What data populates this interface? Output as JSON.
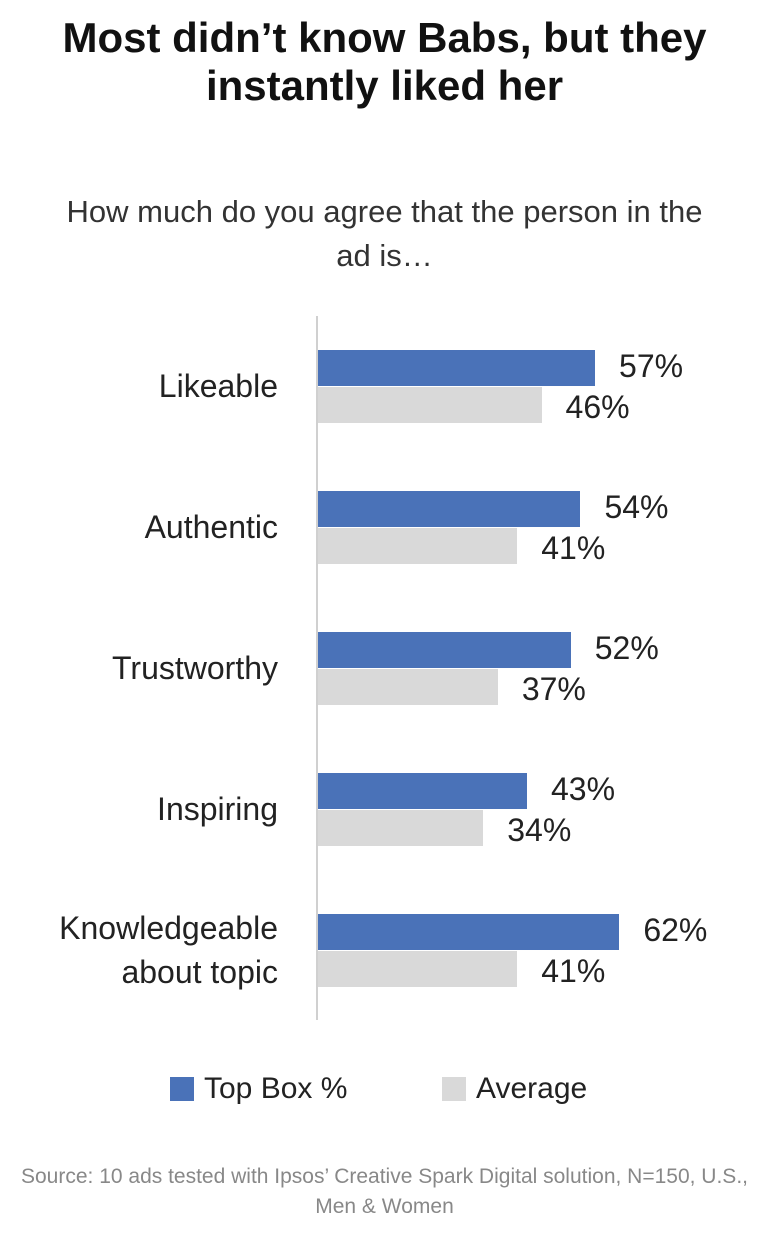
{
  "chart_data": {
    "type": "bar",
    "orientation": "horizontal",
    "title": "Most didn’t know Babs, but they instantly liked her",
    "subtitle": "How much do you agree that the person in the ad is…",
    "categories": [
      "Likeable",
      "Authentic",
      "Trustworthy",
      "Inspiring",
      "Knowledgeable about topic"
    ],
    "series": [
      {
        "name": "Top Box %",
        "color": "#4a72b8",
        "values": [
          57,
          54,
          52,
          43,
          62
        ],
        "value_labels": [
          "57%",
          "54%",
          "52%",
          "43%",
          "62%"
        ]
      },
      {
        "name": "Average",
        "color": "#d9d9d9",
        "values": [
          46,
          41,
          37,
          34,
          41
        ],
        "value_labels": [
          "46%",
          "41%",
          "37%",
          "34%",
          "41%"
        ]
      }
    ],
    "source": "Source: 10 ads tested with Ipsos’ Creative Spark Digital solution, N=150, U.S., Men & Women"
  }
}
